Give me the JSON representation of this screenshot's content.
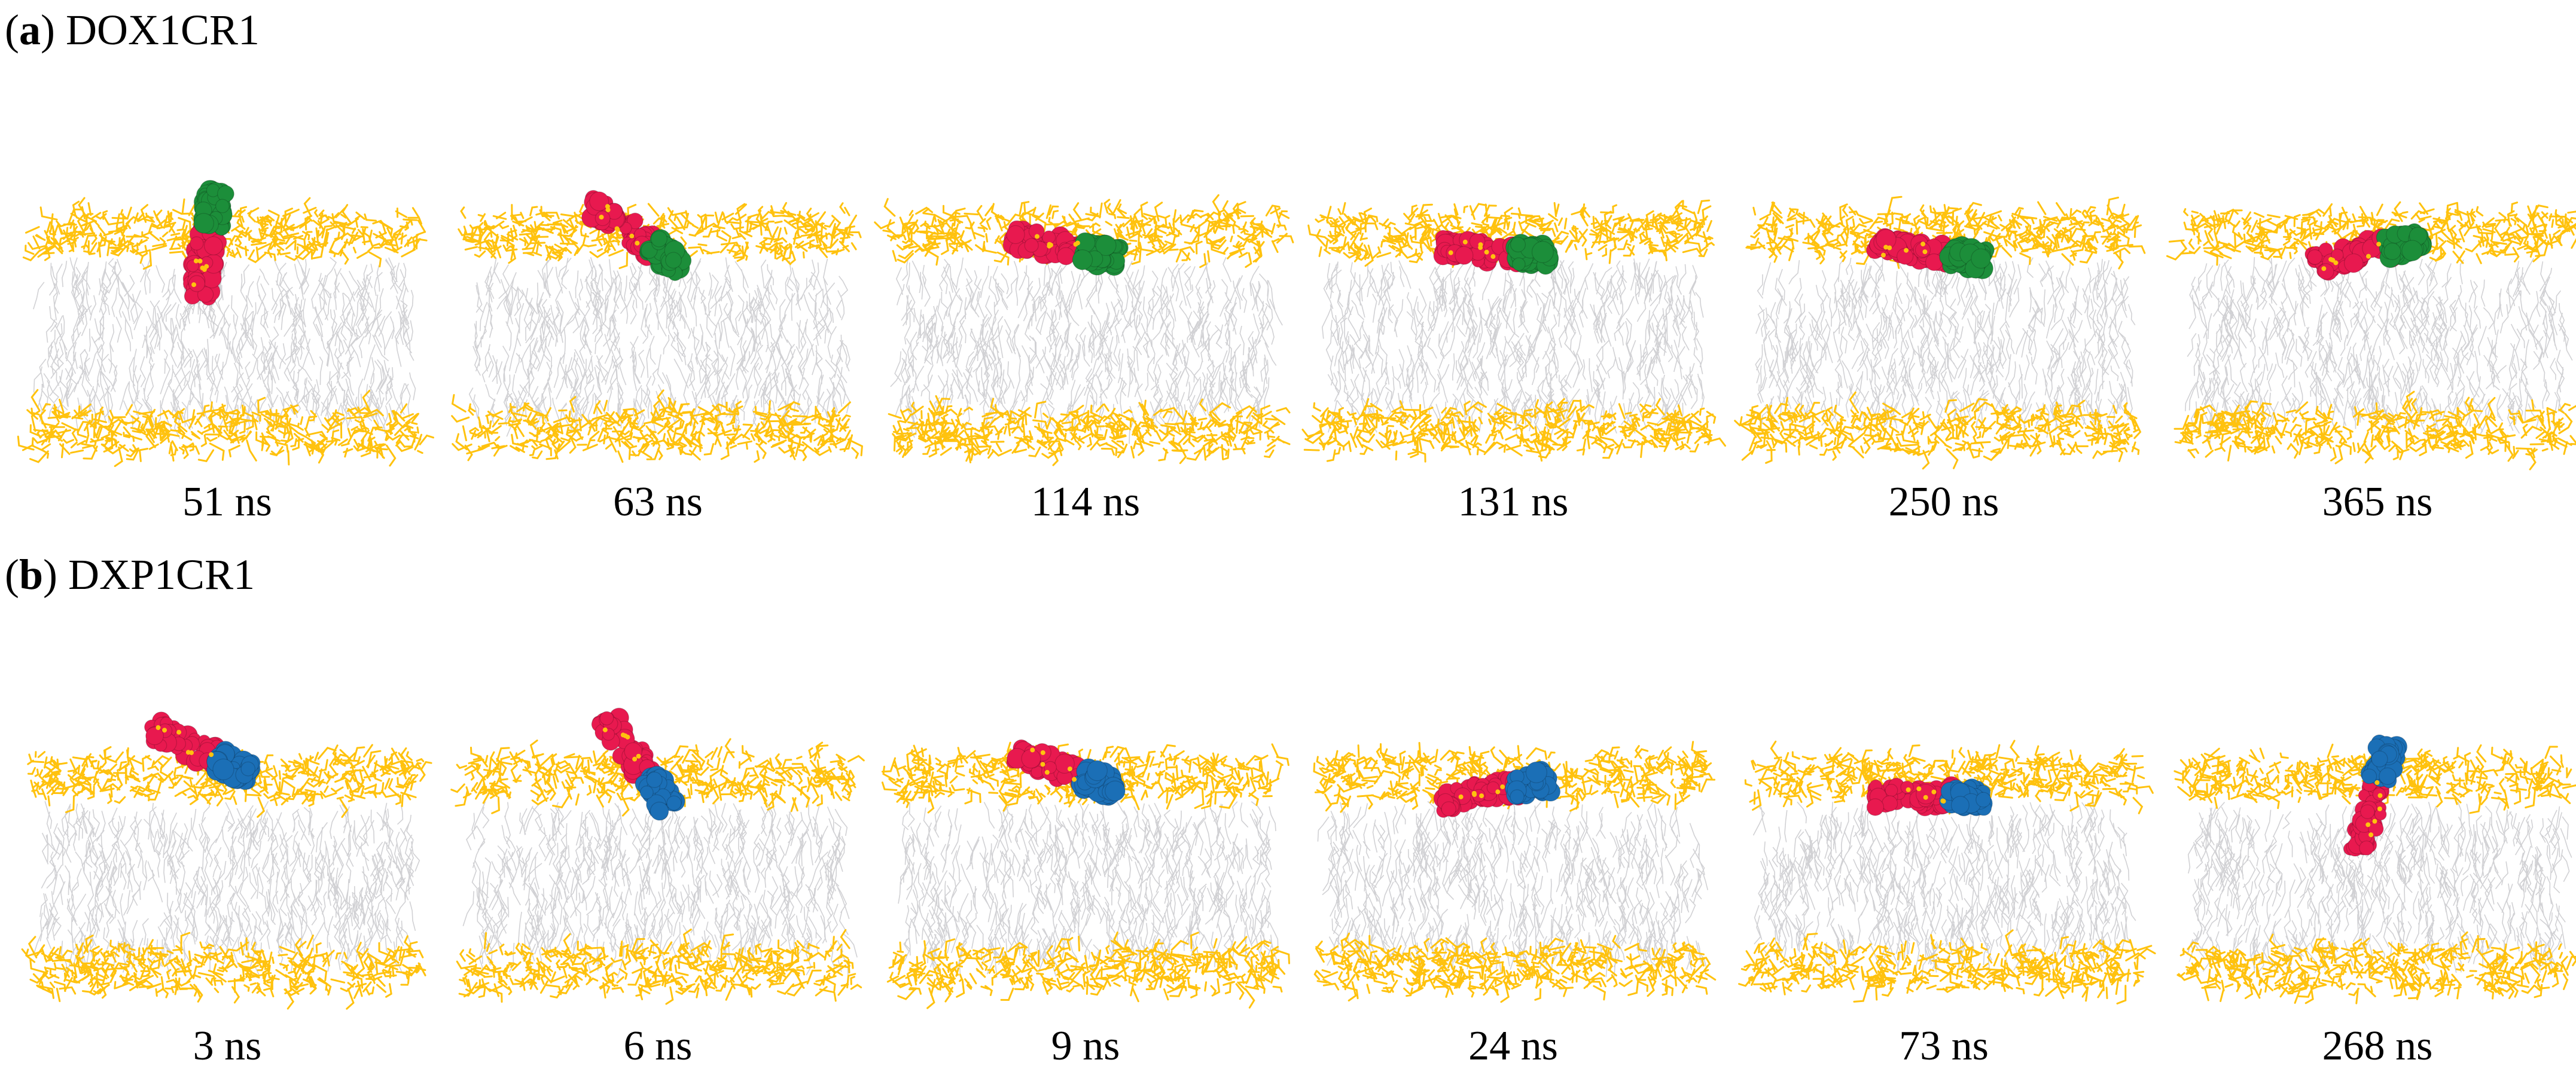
{
  "panels": [
    {
      "letter": "a",
      "name": "DOX1CR1",
      "snapshots": [
        {
          "time": "51 ns",
          "molecule": "red-green",
          "tilt": -80,
          "depth": 0.05
        },
        {
          "time": "63 ns",
          "molecule": "red-green",
          "tilt": 35,
          "depth": 0.2
        },
        {
          "time": "114 ns",
          "molecule": "red-green",
          "tilt": 10,
          "depth": 0.45
        },
        {
          "time": "131 ns",
          "molecule": "red-green",
          "tilt": 5,
          "depth": 0.55
        },
        {
          "time": "250 ns",
          "molecule": "red-green",
          "tilt": 8,
          "depth": 0.6
        },
        {
          "time": "365 ns",
          "molecule": "red-green",
          "tilt": -12,
          "depth": 0.45
        }
      ]
    },
    {
      "letter": "b",
      "name": "DXP1CR1",
      "snapshots": [
        {
          "time": "3 ns",
          "molecule": "red-blue",
          "tilt": 25,
          "depth": -0.6
        },
        {
          "time": "6 ns",
          "molecule": "red-blue",
          "tilt": 55,
          "depth": -0.2
        },
        {
          "time": "9 ns",
          "molecule": "red-blue",
          "tilt": 20,
          "depth": -0.1
        },
        {
          "time": "24 ns",
          "molecule": "red-blue",
          "tilt": -10,
          "depth": 0.3
        },
        {
          "time": "73 ns",
          "molecule": "red-blue",
          "tilt": 0,
          "depth": 0.55
        },
        {
          "time": "268 ns",
          "molecule": "red-blue",
          "tilt": -75,
          "depth": 0.3
        }
      ]
    }
  ],
  "colors": {
    "headgroup": "#FFC20E",
    "tail": "#C9C9CC",
    "drug": "#E8194F",
    "carrier_green": "#1C8E3A",
    "carrier_blue": "#1B6FB6"
  }
}
